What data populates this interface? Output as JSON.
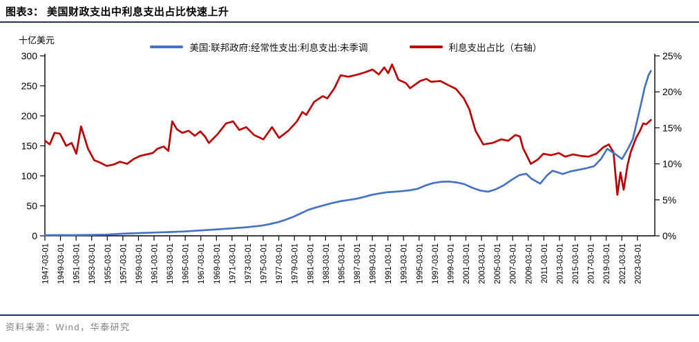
{
  "header": {
    "title": "图表3：  美国财政支出中利息支出占比快速上升"
  },
  "footer": {
    "source": "资料来源：Wind，华泰研究"
  },
  "colors": {
    "blue": "#4472C4",
    "red": "#C00000",
    "rule_navy": "#17375E",
    "axis": "#000000",
    "source_gray": "#828282"
  },
  "chart_data": {
    "type": "line",
    "unit_label": "十亿美元",
    "legend": [
      {
        "label": "美国:联邦政府:经常性支出:利息支出:未季调",
        "color": "#4472C4",
        "axis": "left",
        "swatch": "blue-line"
      },
      {
        "label": "利息支出占比（右轴）",
        "color": "#C00000",
        "axis": "right",
        "swatch": "red-line"
      }
    ],
    "left_axis": {
      "min": 0,
      "max": 300,
      "ticks": [
        0,
        50,
        100,
        150,
        200,
        250,
        300
      ]
    },
    "right_axis": {
      "min": 0,
      "max": 25,
      "ticks": [
        0,
        5,
        10,
        15,
        20,
        25
      ],
      "suffix": "%"
    },
    "x_axis": {
      "range": [
        1947.17,
        2025.4
      ],
      "labels": [
        "1947-03-01",
        "1949-03-01",
        "1951-03-01",
        "1953-03-01",
        "1955-03-01",
        "1957-03-01",
        "1959-03-01",
        "1961-03-01",
        "1963-03-01",
        "1965-03-01",
        "1967-03-01",
        "1969-03-01",
        "1971-03-01",
        "1973-03-01",
        "1975-03-01",
        "1977-03-01",
        "1979-03-01",
        "1981-03-01",
        "1983-03-01",
        "1985-03-01",
        "1987-03-01",
        "1989-03-01",
        "1991-03-01",
        "1993-03-01",
        "1995-03-01",
        "1997-03-01",
        "1999-03-01",
        "2001-03-01",
        "2003-03-01",
        "2005-03-01",
        "2007-03-01",
        "2009-03-01",
        "2011-03-01",
        "2013-03-01",
        "2015-03-01",
        "2017-03-01",
        "2019-03-01",
        "2021-03-01",
        "2023-03-01"
      ]
    },
    "series": [
      {
        "name": "美国:联邦政府:经常性支出:利息支出:未季调",
        "axis": "left",
        "color": "#4472C4",
        "unit": "十亿美元",
        "points": [
          [
            1947.2,
            1.0
          ],
          [
            1949,
            1.1
          ],
          [
            1951,
            1.2
          ],
          [
            1953,
            1.5
          ],
          [
            1955,
            2.0
          ],
          [
            1957,
            3.4
          ],
          [
            1959,
            4.5
          ],
          [
            1961,
            5.4
          ],
          [
            1963,
            6.2
          ],
          [
            1965,
            7.2
          ],
          [
            1967,
            8.8
          ],
          [
            1969,
            10.5
          ],
          [
            1971,
            12.3
          ],
          [
            1973,
            14.3
          ],
          [
            1975,
            17.0
          ],
          [
            1976,
            19.5
          ],
          [
            1977,
            22.5
          ],
          [
            1978,
            26.5
          ],
          [
            1979,
            31.5
          ],
          [
            1980,
            37.5
          ],
          [
            1981,
            43.5
          ],
          [
            1982,
            47.5
          ],
          [
            1983,
            51.0
          ],
          [
            1984,
            54.5
          ],
          [
            1985,
            57.5
          ],
          [
            1986,
            59.5
          ],
          [
            1987,
            61.5
          ],
          [
            1988,
            64.5
          ],
          [
            1989,
            68.0
          ],
          [
            1990,
            70.5
          ],
          [
            1991,
            72.5
          ],
          [
            1992,
            73.5
          ],
          [
            1993,
            74.5
          ],
          [
            1994,
            76.0
          ],
          [
            1995,
            78.5
          ],
          [
            1996,
            84.0
          ],
          [
            1997,
            88.0
          ],
          [
            1998,
            90.0
          ],
          [
            1999,
            90.5
          ],
          [
            2000,
            89.0
          ],
          [
            2001,
            86.0
          ],
          [
            2002,
            80.0
          ],
          [
            2003,
            75.5
          ],
          [
            2004,
            73.5
          ],
          [
            2005,
            77.5
          ],
          [
            2006,
            84.0
          ],
          [
            2007,
            93.0
          ],
          [
            2008,
            101.0
          ],
          [
            2008.9,
            103.5
          ],
          [
            2009.6,
            95.0
          ],
          [
            2010.7,
            87.0
          ],
          [
            2011.6,
            101.0
          ],
          [
            2012.3,
            108.5
          ],
          [
            2013.6,
            103.0
          ],
          [
            2014.6,
            107.5
          ],
          [
            2015.6,
            110.0
          ],
          [
            2016.6,
            112.5
          ],
          [
            2017.6,
            116.0
          ],
          [
            2018.5,
            128.0
          ],
          [
            2019.3,
            145.0
          ],
          [
            2020.3,
            136.5
          ],
          [
            2021.2,
            128.0
          ],
          [
            2022.0,
            146.0
          ],
          [
            2022.6,
            162.0
          ],
          [
            2023.1,
            190.0
          ],
          [
            2023.6,
            218.0
          ],
          [
            2024.1,
            247.0
          ],
          [
            2024.6,
            268.0
          ],
          [
            2024.9,
            275.0
          ]
        ]
      },
      {
        "name": "利息支出占比（右轴）",
        "axis": "right",
        "color": "#C00000",
        "unit": "%",
        "points": [
          [
            1947.2,
            13.2
          ],
          [
            1947.8,
            12.7
          ],
          [
            1948.4,
            14.3
          ],
          [
            1949.1,
            14.2
          ],
          [
            1949.9,
            12.5
          ],
          [
            1950.6,
            12.9
          ],
          [
            1951.2,
            11.4
          ],
          [
            1951.8,
            15.2
          ],
          [
            1952.7,
            12.1
          ],
          [
            1953.5,
            10.5
          ],
          [
            1954.2,
            10.2
          ],
          [
            1955.1,
            9.7
          ],
          [
            1956.0,
            9.9
          ],
          [
            1956.8,
            10.3
          ],
          [
            1957.7,
            10.0
          ],
          [
            1958.6,
            10.7
          ],
          [
            1959.4,
            11.1
          ],
          [
            1960.2,
            11.3
          ],
          [
            1961.0,
            11.5
          ],
          [
            1961.6,
            12.1
          ],
          [
            1962.4,
            12.4
          ],
          [
            1963.0,
            11.8
          ],
          [
            1963.5,
            15.9
          ],
          [
            1964.1,
            14.8
          ],
          [
            1964.8,
            14.3
          ],
          [
            1965.6,
            14.6
          ],
          [
            1966.4,
            13.9
          ],
          [
            1967.1,
            14.5
          ],
          [
            1967.7,
            13.8
          ],
          [
            1968.2,
            12.9
          ],
          [
            1969.3,
            14.1
          ],
          [
            1970.4,
            15.6
          ],
          [
            1971.3,
            15.9
          ],
          [
            1972.1,
            14.7
          ],
          [
            1973.0,
            15.1
          ],
          [
            1974.0,
            14.0
          ],
          [
            1975.2,
            13.4
          ],
          [
            1976.3,
            15.1
          ],
          [
            1977.2,
            13.6
          ],
          [
            1978.4,
            14.6
          ],
          [
            1979.5,
            15.9
          ],
          [
            1980.2,
            17.2
          ],
          [
            1980.7,
            16.8
          ],
          [
            1981.7,
            18.6
          ],
          [
            1982.8,
            19.4
          ],
          [
            1983.4,
            19.1
          ],
          [
            1984.3,
            20.5
          ],
          [
            1985.1,
            22.3
          ],
          [
            1986.1,
            22.1
          ],
          [
            1987.3,
            22.4
          ],
          [
            1988.2,
            22.7
          ],
          [
            1989.2,
            23.1
          ],
          [
            1990.0,
            22.4
          ],
          [
            1990.7,
            23.4
          ],
          [
            1991.2,
            22.6
          ],
          [
            1991.7,
            23.8
          ],
          [
            1992.5,
            21.7
          ],
          [
            1993.5,
            21.2
          ],
          [
            1994.0,
            20.5
          ],
          [
            1995.3,
            21.5
          ],
          [
            1996.1,
            21.8
          ],
          [
            1996.7,
            21.4
          ],
          [
            1997.9,
            21.5
          ],
          [
            1998.8,
            21.0
          ],
          [
            1999.9,
            20.4
          ],
          [
            2000.9,
            19.1
          ],
          [
            2001.6,
            17.6
          ],
          [
            2002.4,
            14.6
          ],
          [
            2003.4,
            12.7
          ],
          [
            2004.6,
            12.9
          ],
          [
            2005.7,
            13.4
          ],
          [
            2006.6,
            13.2
          ],
          [
            2007.5,
            14.0
          ],
          [
            2008.1,
            13.8
          ],
          [
            2008.5,
            12.2
          ],
          [
            2009.5,
            10.0
          ],
          [
            2010.4,
            10.6
          ],
          [
            2011.1,
            11.4
          ],
          [
            2012.1,
            11.2
          ],
          [
            2013.1,
            11.5
          ],
          [
            2013.9,
            11.0
          ],
          [
            2014.9,
            11.3
          ],
          [
            2015.9,
            11.1
          ],
          [
            2016.9,
            11.0
          ],
          [
            2017.9,
            11.4
          ],
          [
            2018.8,
            12.3
          ],
          [
            2019.5,
            12.7
          ],
          [
            2020.1,
            11.6
          ],
          [
            2020.6,
            5.7
          ],
          [
            2021.0,
            8.8
          ],
          [
            2021.4,
            6.4
          ],
          [
            2021.9,
            9.8
          ],
          [
            2022.3,
            11.6
          ],
          [
            2023.0,
            13.6
          ],
          [
            2023.5,
            14.6
          ],
          [
            2023.9,
            15.6
          ],
          [
            2024.3,
            15.5
          ],
          [
            2024.9,
            16.1
          ]
        ]
      }
    ]
  }
}
